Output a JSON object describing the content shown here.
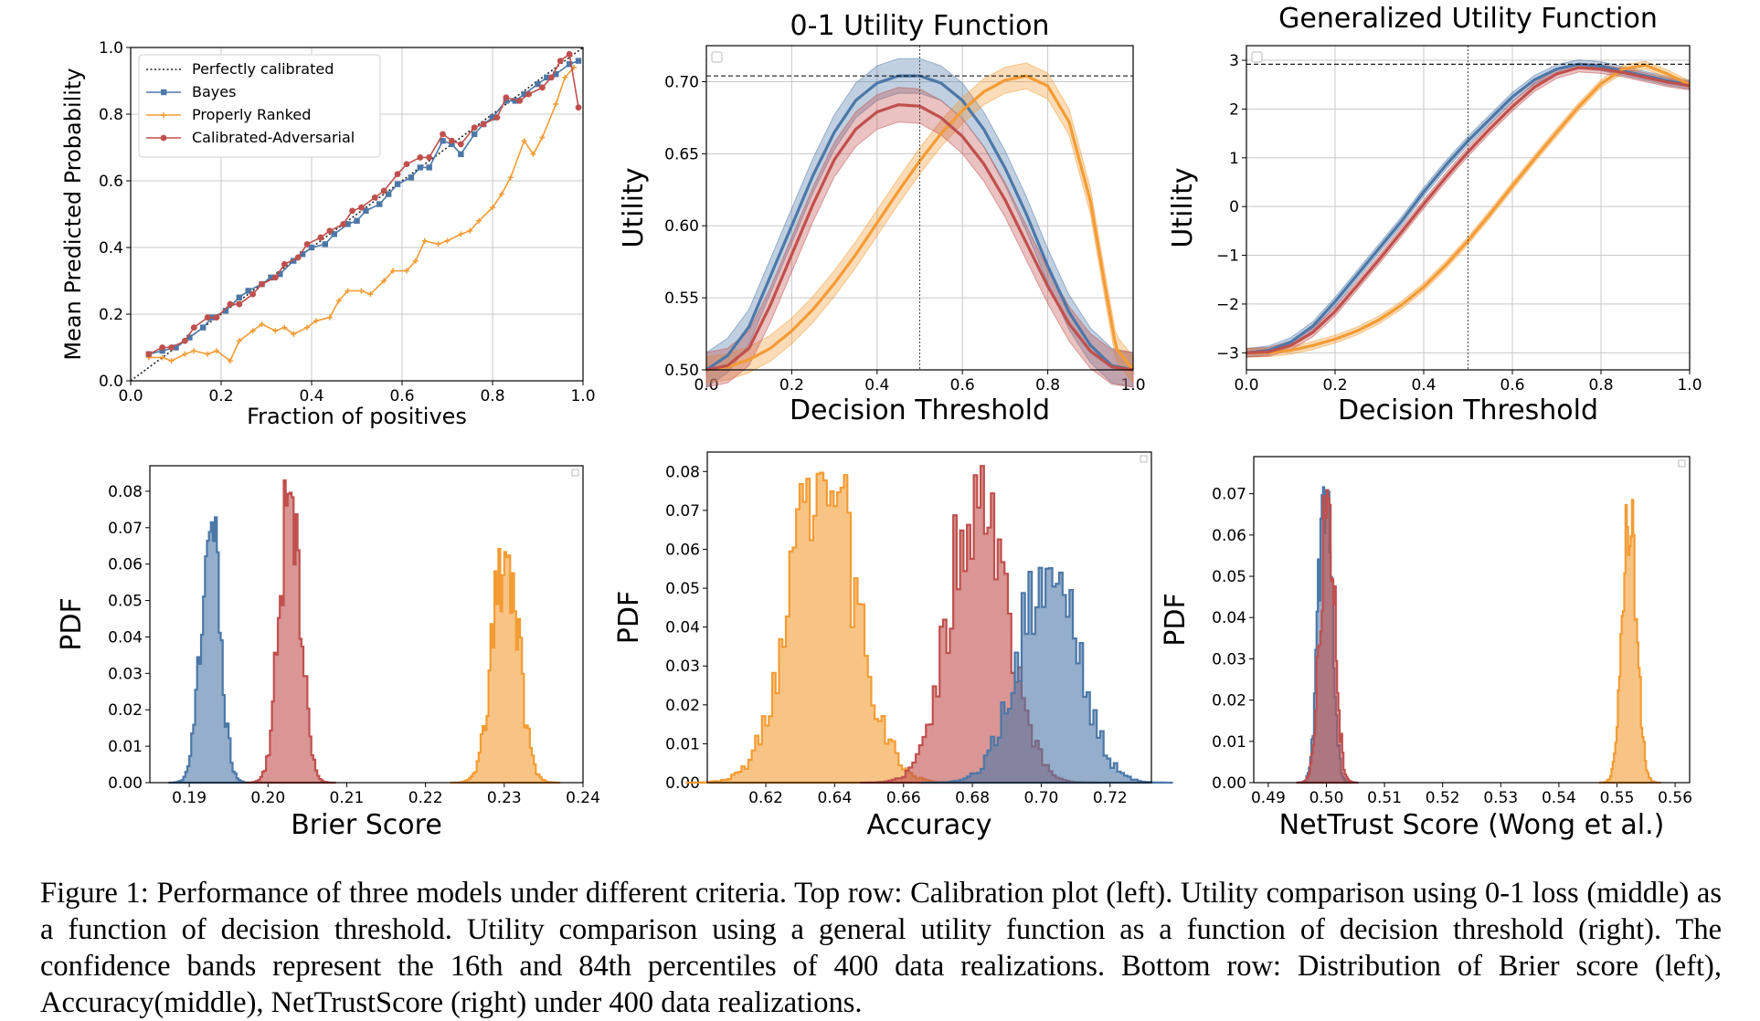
{
  "colors": {
    "bayes": "#4c78a8",
    "ranked": "#f39c34",
    "adv": "#c0504d"
  },
  "caption": "Figure 1: Performance of three models under different criteria. Top row: Calibration plot (left). Utility comparison using 0-1 loss (middle) as a function of decision threshold. Utility comparison using a general utility function as a function of decision threshold (right). The confidence bands represent the 16th and 84th percentiles of 400 data realizations. Bottom row: Distribution of Brier score (left), Accuracy(middle), NetTrustScore (right) under 400 data realizations.",
  "chart_data": [
    {
      "type": "line",
      "xlabel": "Fraction of positives",
      "ylabel": "Mean Predicted Probability",
      "xlim": [
        0,
        1
      ],
      "ylim": [
        0,
        1
      ],
      "xticks": [
        "0.0",
        "0.2",
        "0.4",
        "0.6",
        "0.8",
        "1.0"
      ],
      "yticks": [
        "0.0",
        "0.2",
        "0.4",
        "0.6",
        "0.8",
        "1.0"
      ],
      "grid": true,
      "legend_position": "top-left",
      "legend": [
        "Perfectly calibrated",
        "Bayes",
        "Properly Ranked",
        "Calibrated-Adversarial"
      ],
      "reference_line": [
        [
          0,
          0
        ],
        [
          1,
          1
        ]
      ],
      "series": [
        {
          "name": "Bayes",
          "color": "bayes",
          "x": [
            0.04,
            0.07,
            0.1,
            0.13,
            0.16,
            0.18,
            0.21,
            0.24,
            0.26,
            0.29,
            0.31,
            0.33,
            0.36,
            0.38,
            0.4,
            0.43,
            0.45,
            0.48,
            0.5,
            0.52,
            0.55,
            0.57,
            0.59,
            0.62,
            0.64,
            0.66,
            0.69,
            0.71,
            0.73,
            0.76,
            0.78,
            0.8,
            0.83,
            0.85,
            0.87,
            0.9,
            0.92,
            0.94,
            0.97,
            0.99
          ],
          "y": [
            0.08,
            0.09,
            0.1,
            0.13,
            0.16,
            0.19,
            0.21,
            0.25,
            0.27,
            0.29,
            0.31,
            0.32,
            0.36,
            0.38,
            0.4,
            0.41,
            0.44,
            0.47,
            0.48,
            0.51,
            0.53,
            0.56,
            0.59,
            0.61,
            0.64,
            0.64,
            0.72,
            0.71,
            0.68,
            0.74,
            0.77,
            0.79,
            0.84,
            0.84,
            0.86,
            0.89,
            0.91,
            0.92,
            0.95,
            0.96
          ]
        },
        {
          "name": "Properly Ranked",
          "color": "ranked",
          "x": [
            0.04,
            0.07,
            0.09,
            0.12,
            0.14,
            0.17,
            0.19,
            0.22,
            0.24,
            0.27,
            0.29,
            0.32,
            0.34,
            0.36,
            0.39,
            0.41,
            0.44,
            0.46,
            0.48,
            0.51,
            0.53,
            0.56,
            0.58,
            0.61,
            0.63,
            0.65,
            0.68,
            0.7,
            0.73,
            0.75,
            0.77,
            0.8,
            0.82,
            0.84,
            0.87,
            0.89,
            0.91,
            0.94,
            0.96,
            0.98
          ],
          "y": [
            0.07,
            0.07,
            0.06,
            0.08,
            0.09,
            0.08,
            0.09,
            0.06,
            0.12,
            0.15,
            0.17,
            0.15,
            0.16,
            0.14,
            0.16,
            0.18,
            0.19,
            0.24,
            0.27,
            0.27,
            0.26,
            0.3,
            0.33,
            0.33,
            0.36,
            0.42,
            0.41,
            0.42,
            0.44,
            0.45,
            0.48,
            0.52,
            0.56,
            0.61,
            0.72,
            0.68,
            0.73,
            0.83,
            0.91,
            0.94
          ]
        },
        {
          "name": "Calibrated-Adversarial",
          "color": "adv",
          "x": [
            0.04,
            0.07,
            0.09,
            0.12,
            0.14,
            0.17,
            0.19,
            0.22,
            0.24,
            0.27,
            0.29,
            0.32,
            0.34,
            0.37,
            0.39,
            0.42,
            0.44,
            0.47,
            0.49,
            0.51,
            0.54,
            0.56,
            0.59,
            0.61,
            0.64,
            0.66,
            0.69,
            0.71,
            0.73,
            0.76,
            0.78,
            0.81,
            0.83,
            0.86,
            0.88,
            0.91,
            0.93,
            0.95,
            0.97,
            0.99
          ],
          "y": [
            0.08,
            0.1,
            0.1,
            0.12,
            0.16,
            0.19,
            0.19,
            0.23,
            0.23,
            0.26,
            0.29,
            0.31,
            0.35,
            0.37,
            0.41,
            0.43,
            0.45,
            0.47,
            0.51,
            0.52,
            0.55,
            0.57,
            0.62,
            0.65,
            0.67,
            0.67,
            0.74,
            0.72,
            0.71,
            0.76,
            0.77,
            0.79,
            0.85,
            0.84,
            0.86,
            0.88,
            0.91,
            0.96,
            0.98,
            0.82
          ]
        }
      ]
    },
    {
      "type": "line",
      "title": "0-1 Utility Function",
      "xlabel": "Decision Threshold",
      "ylabel": "Utility",
      "xlim": [
        0,
        1
      ],
      "ylim": [
        0.5,
        0.725
      ],
      "xticks": [
        "0.0",
        "0.2",
        "0.4",
        "0.6",
        "0.8",
        "1.0"
      ],
      "yticks": [
        "0.50",
        "0.55",
        "0.60",
        "0.65",
        "0.70"
      ],
      "grid": true,
      "hline": 0.704,
      "vline": 0.5,
      "band": "16th-84th percentile",
      "series": [
        {
          "name": "Bayes",
          "color": "bayes",
          "x": [
            0,
            0.05,
            0.1,
            0.15,
            0.2,
            0.25,
            0.3,
            0.35,
            0.4,
            0.45,
            0.5,
            0.55,
            0.6,
            0.65,
            0.7,
            0.75,
            0.8,
            0.85,
            0.9,
            0.95,
            1.0
          ],
          "y": [
            0.5,
            0.51,
            0.53,
            0.565,
            0.6,
            0.635,
            0.665,
            0.687,
            0.699,
            0.704,
            0.704,
            0.699,
            0.687,
            0.667,
            0.64,
            0.608,
            0.572,
            0.54,
            0.517,
            0.503,
            0.5
          ],
          "band_width": 0.012
        },
        {
          "name": "Properly Ranked",
          "color": "ranked",
          "x": [
            0,
            0.05,
            0.1,
            0.15,
            0.2,
            0.25,
            0.3,
            0.35,
            0.4,
            0.45,
            0.5,
            0.55,
            0.6,
            0.65,
            0.7,
            0.75,
            0.8,
            0.85,
            0.9,
            0.93,
            0.96,
            1.0
          ],
          "y": [
            0.5,
            0.502,
            0.507,
            0.515,
            0.527,
            0.542,
            0.56,
            0.58,
            0.602,
            0.624,
            0.645,
            0.664,
            0.68,
            0.693,
            0.701,
            0.704,
            0.697,
            0.672,
            0.617,
            0.565,
            0.515,
            0.5
          ],
          "band_width": 0.009
        },
        {
          "name": "Calibrated-Adversarial",
          "color": "adv",
          "x": [
            0,
            0.05,
            0.1,
            0.15,
            0.2,
            0.25,
            0.3,
            0.35,
            0.4,
            0.45,
            0.5,
            0.55,
            0.6,
            0.65,
            0.7,
            0.75,
            0.8,
            0.85,
            0.9,
            0.95,
            1.0
          ],
          "y": [
            0.5,
            0.503,
            0.515,
            0.545,
            0.58,
            0.615,
            0.646,
            0.667,
            0.679,
            0.684,
            0.683,
            0.675,
            0.662,
            0.643,
            0.618,
            0.588,
            0.558,
            0.532,
            0.513,
            0.502,
            0.5
          ],
          "band_width": 0.012
        }
      ]
    },
    {
      "type": "line",
      "title": "Generalized Utility Function",
      "xlabel": "Decision Threshold",
      "ylabel": "Utility",
      "xlim": [
        0,
        1
      ],
      "ylim": [
        -3.35,
        3.3
      ],
      "xticks": [
        "0.0",
        "0.2",
        "0.4",
        "0.6",
        "0.8",
        "1.0"
      ],
      "yticks": [
        "−3",
        "−2",
        "−1",
        "0",
        "1",
        "2",
        "3"
      ],
      "ytick_values": [
        -3,
        -2,
        -1,
        0,
        1,
        2,
        3
      ],
      "grid": true,
      "hline": 2.92,
      "vline": 0.5,
      "band": "16th-84th percentile",
      "series": [
        {
          "name": "Bayes",
          "color": "bayes",
          "x": [
            0,
            0.05,
            0.1,
            0.15,
            0.2,
            0.25,
            0.3,
            0.35,
            0.4,
            0.45,
            0.5,
            0.55,
            0.6,
            0.65,
            0.7,
            0.75,
            0.8,
            0.85,
            0.9,
            0.95,
            1.0
          ],
          "y": [
            -3.0,
            -2.95,
            -2.78,
            -2.45,
            -1.95,
            -1.4,
            -0.85,
            -0.3,
            0.3,
            0.85,
            1.35,
            1.8,
            2.25,
            2.6,
            2.82,
            2.92,
            2.88,
            2.78,
            2.68,
            2.58,
            2.5
          ],
          "band_width": 0.09
        },
        {
          "name": "Properly Ranked",
          "color": "ranked",
          "x": [
            0,
            0.05,
            0.1,
            0.15,
            0.2,
            0.25,
            0.3,
            0.35,
            0.4,
            0.45,
            0.5,
            0.55,
            0.6,
            0.65,
            0.7,
            0.75,
            0.8,
            0.85,
            0.9,
            0.95,
            1.0
          ],
          "y": [
            -3.0,
            -3.0,
            -2.95,
            -2.85,
            -2.72,
            -2.55,
            -2.32,
            -2.02,
            -1.65,
            -1.2,
            -0.7,
            -0.15,
            0.42,
            0.98,
            1.52,
            2.05,
            2.52,
            2.82,
            2.9,
            2.72,
            2.5
          ],
          "band_width": 0.08
        },
        {
          "name": "Calibrated-Adversarial",
          "color": "adv",
          "x": [
            0,
            0.05,
            0.1,
            0.15,
            0.2,
            0.25,
            0.3,
            0.35,
            0.4,
            0.45,
            0.5,
            0.55,
            0.6,
            0.65,
            0.7,
            0.75,
            0.8,
            0.85,
            0.9,
            0.95,
            1.0
          ],
          "y": [
            -3.0,
            -2.98,
            -2.85,
            -2.58,
            -2.15,
            -1.62,
            -1.08,
            -0.52,
            0.05,
            0.6,
            1.12,
            1.6,
            2.05,
            2.45,
            2.72,
            2.85,
            2.82,
            2.75,
            2.65,
            2.55,
            2.48
          ],
          "band_width": 0.09
        }
      ]
    },
    {
      "type": "histogram",
      "xlabel": "Brier Score",
      "ylabel": "PDF",
      "xlim": [
        0.185,
        0.24
      ],
      "ylim": [
        0,
        0.087
      ],
      "xticks": [
        "0.19",
        "0.20",
        "0.21",
        "0.22",
        "0.23",
        "0.24"
      ],
      "xtick_values": [
        0.19,
        0.2,
        0.21,
        0.22,
        0.23,
        0.24
      ],
      "yticks": [
        "0.00",
        "0.01",
        "0.02",
        "0.03",
        "0.04",
        "0.05",
        "0.06",
        "0.07",
        "0.08"
      ],
      "series": [
        {
          "name": "Bayes",
          "color": "bayes",
          "center": 0.1927,
          "sd": 0.0012,
          "peak": 0.074
        },
        {
          "name": "Calibrated-Adversarial",
          "color": "adv",
          "center": 0.2028,
          "sd": 0.0013,
          "peak": 0.084
        },
        {
          "name": "Properly Ranked",
          "color": "ranked",
          "center": 0.2302,
          "sd": 0.0016,
          "peak": 0.066
        }
      ]
    },
    {
      "type": "histogram",
      "xlabel": "Accuracy",
      "ylabel": "PDF",
      "xlim": [
        0.603,
        0.732
      ],
      "ylim": [
        0,
        0.085
      ],
      "xticks": [
        "0.62",
        "0.64",
        "0.66",
        "0.68",
        "0.70",
        "0.72"
      ],
      "xtick_values": [
        0.62,
        0.64,
        0.66,
        0.68,
        0.7,
        0.72
      ],
      "yticks": [
        "0.00",
        "0.01",
        "0.02",
        "0.03",
        "0.04",
        "0.05",
        "0.06",
        "0.07",
        "0.08"
      ],
      "series": [
        {
          "name": "Properly Ranked",
          "color": "ranked",
          "center": 0.637,
          "sd": 0.0095,
          "peak": 0.08
        },
        {
          "name": "Calibrated-Adversarial",
          "color": "adv",
          "center": 0.682,
          "sd": 0.008,
          "peak": 0.082
        },
        {
          "name": "Bayes",
          "color": "bayes",
          "center": 0.702,
          "sd": 0.0085,
          "peak": 0.057
        }
      ]
    },
    {
      "type": "histogram",
      "xlabel": "NetTrust Score (Wong et al.)",
      "ylabel": "PDF",
      "xlim": [
        0.4875,
        0.5625
      ],
      "ylim": [
        0,
        0.079
      ],
      "xticks": [
        "0.49",
        "0.50",
        "0.51",
        "0.52",
        "0.53",
        "0.54",
        "0.55",
        "0.56"
      ],
      "xtick_values": [
        0.49,
        0.5,
        0.51,
        0.52,
        0.53,
        0.54,
        0.55,
        0.56
      ],
      "yticks": [
        "0.00",
        "0.01",
        "0.02",
        "0.03",
        "0.04",
        "0.05",
        "0.06",
        "0.07"
      ],
      "series": [
        {
          "name": "Bayes",
          "color": "bayes",
          "center": 0.4998,
          "sd": 0.0011,
          "peak": 0.075
        },
        {
          "name": "Calibrated-Adversarial",
          "color": "adv",
          "center": 0.5002,
          "sd": 0.0012,
          "peak": 0.072
        },
        {
          "name": "Properly Ranked",
          "color": "ranked",
          "center": 0.5522,
          "sd": 0.0012,
          "peak": 0.073
        }
      ]
    }
  ]
}
